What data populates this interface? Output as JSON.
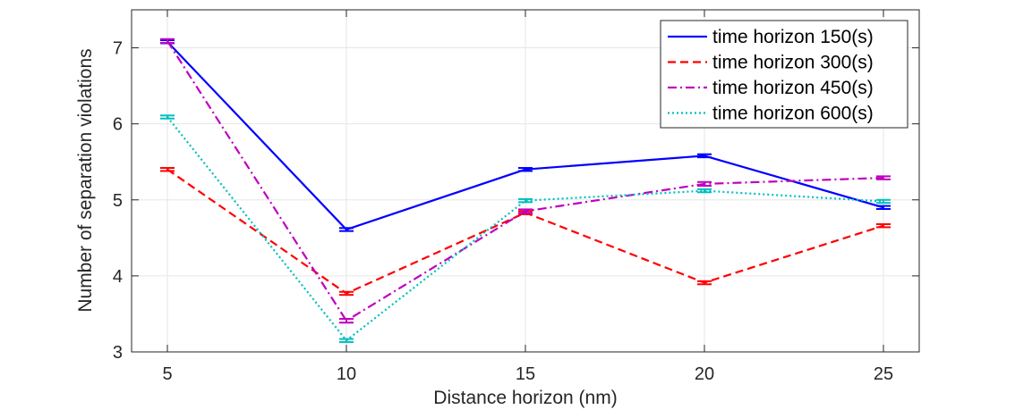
{
  "chart_data": {
    "type": "line",
    "title": "",
    "xlabel": "Distance horizon (nm)",
    "ylabel": "Number of separation violations",
    "xlim": [
      4,
      26
    ],
    "ylim": [
      3,
      7.5
    ],
    "x": [
      5,
      10,
      15,
      20,
      25
    ],
    "xticks": [
      5,
      10,
      15,
      20,
      25
    ],
    "yticks": [
      3,
      4,
      5,
      6,
      7
    ],
    "xtick_labels": [
      "5",
      "10",
      "15",
      "20",
      "25"
    ],
    "ytick_labels": [
      "3",
      "4",
      "5",
      "6",
      "7"
    ],
    "grid": true,
    "legend_position": "top-right",
    "series": [
      {
        "name": "time horizon 150(s)",
        "values": [
          7.08,
          4.61,
          5.4,
          5.58,
          4.9
        ],
        "errors": [
          0.02,
          0.02,
          0.02,
          0.02,
          0.02
        ],
        "color": "#0000ff",
        "line_style": "solid"
      },
      {
        "name": "time horizon 300(s)",
        "values": [
          5.4,
          3.77,
          4.83,
          3.91,
          4.66
        ],
        "errors": [
          0.02,
          0.02,
          0.02,
          0.02,
          0.02
        ],
        "color": "#ff0000",
        "line_style": "dashed"
      },
      {
        "name": "time horizon 450(s)",
        "values": [
          7.09,
          3.41,
          4.85,
          5.21,
          5.29
        ],
        "errors": [
          0.025,
          0.025,
          0.025,
          0.025,
          0.02
        ],
        "color": "#bf00bf",
        "line_style": "dashdot"
      },
      {
        "name": "time horizon 600(s)",
        "values": [
          6.09,
          3.15,
          4.99,
          5.12,
          4.98
        ],
        "errors": [
          0.02,
          0.02,
          0.02,
          0.02,
          0.02
        ],
        "color": "#00bfbf",
        "line_style": "dotted"
      }
    ]
  }
}
